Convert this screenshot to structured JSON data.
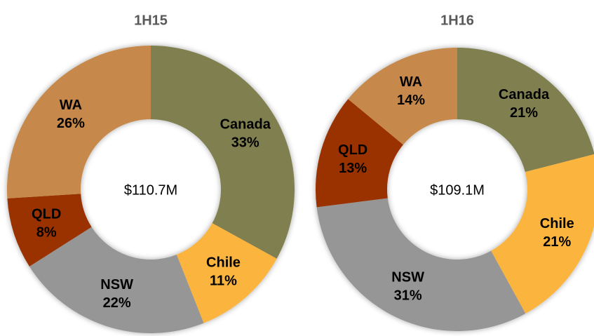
{
  "chart_data": [
    {
      "type": "donut",
      "title": "1H15",
      "center_label": "$110.7M",
      "categories": [
        "Canada",
        "Chile",
        "NSW",
        "QLD",
        "WA"
      ],
      "values": [
        33,
        11,
        22,
        8,
        26
      ],
      "value_labels": [
        "33%",
        "11%",
        "22%",
        "8%",
        "26%"
      ],
      "colors": [
        "#7f7f4f",
        "#fbb43c",
        "#969696",
        "#9a3000",
        "#c6894b"
      ]
    },
    {
      "type": "donut",
      "title": "1H16",
      "center_label": "$109.1M",
      "categories": [
        "Canada",
        "Chile",
        "NSW",
        "QLD",
        "WA"
      ],
      "values": [
        21,
        21,
        31,
        13,
        14
      ],
      "value_labels": [
        "21%",
        "21%",
        "31%",
        "13%",
        "14%"
      ],
      "colors": [
        "#7f7f4f",
        "#fbb43c",
        "#969696",
        "#9a3000",
        "#c6894b"
      ]
    }
  ]
}
